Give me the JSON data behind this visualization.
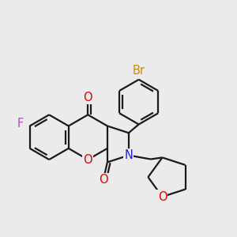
{
  "background_color": "#ebebeb",
  "bond_color": "#1a1a1a",
  "bond_width": 1.6,
  "dbo": 0.055,
  "atom_colors": {
    "O": "#e00000",
    "N": "#2020e0",
    "F": "#bb44bb",
    "Br": "#cc8800"
  },
  "fs": 10.5
}
